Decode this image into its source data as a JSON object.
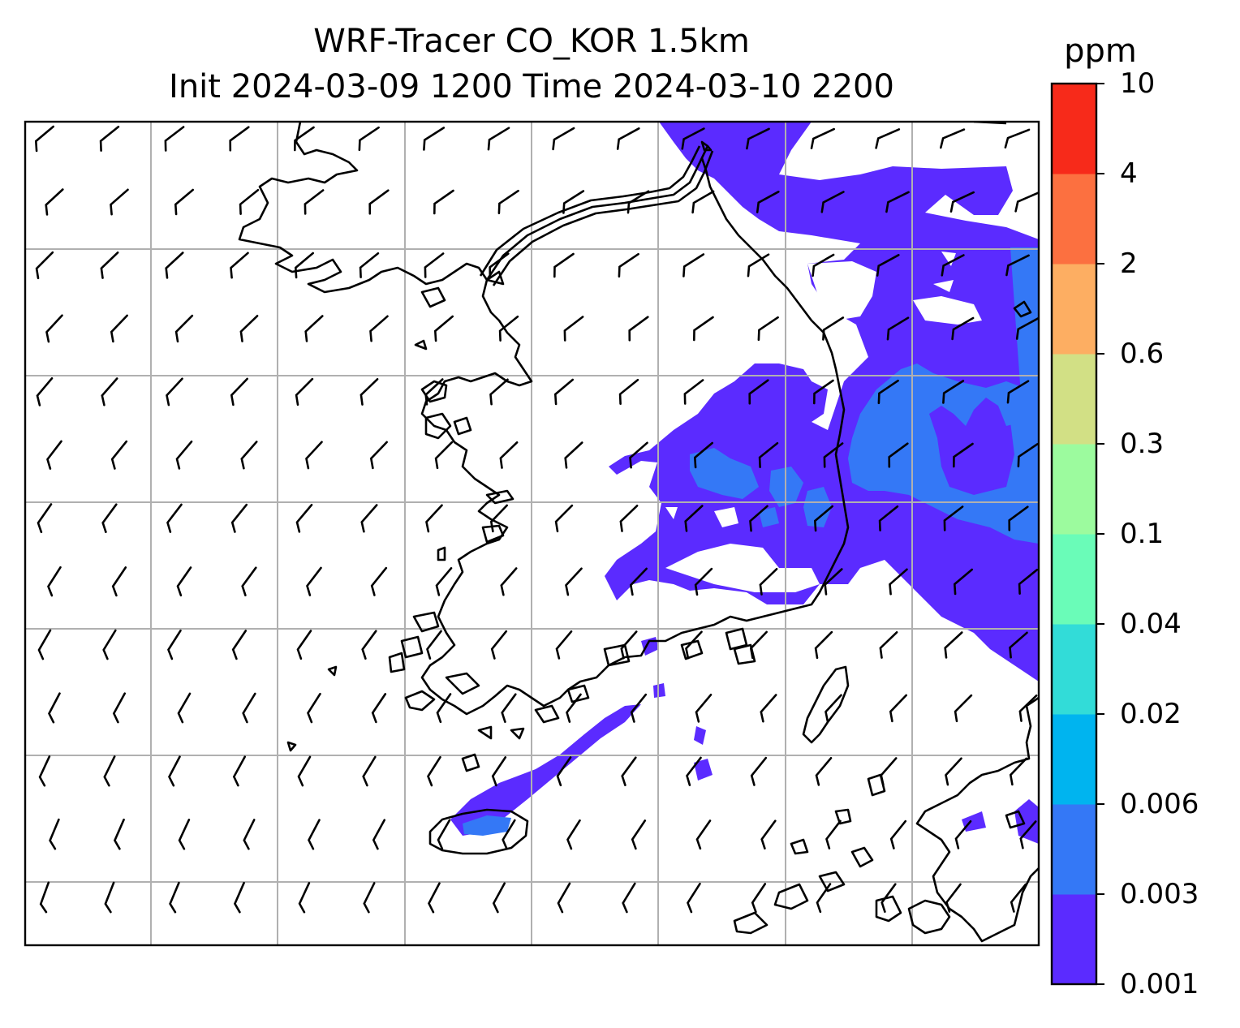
{
  "title": {
    "line1": "WRF-Tracer CO_KOR 1.5km",
    "line2": "Init 2024-03-09 1200 Time 2024-03-10 2200"
  },
  "colorbar": {
    "unit": "ppm",
    "levels": [
      "0.001",
      "0.003",
      "0.006",
      "0.02",
      "0.04",
      "0.1",
      "0.3",
      "0.6",
      "2",
      "4",
      "10"
    ],
    "colors": [
      "#5b2bff",
      "#3478f6",
      "#00b4ef",
      "#32dcd8",
      "#6afcb8",
      "#9cfb9e",
      "#d2e085",
      "#fdae62",
      "#fc7040",
      "#f72a1a"
    ]
  },
  "map": {
    "field": "CO tracer concentration",
    "gridlines": true,
    "wind_barbs": true,
    "coastlines": true
  }
}
